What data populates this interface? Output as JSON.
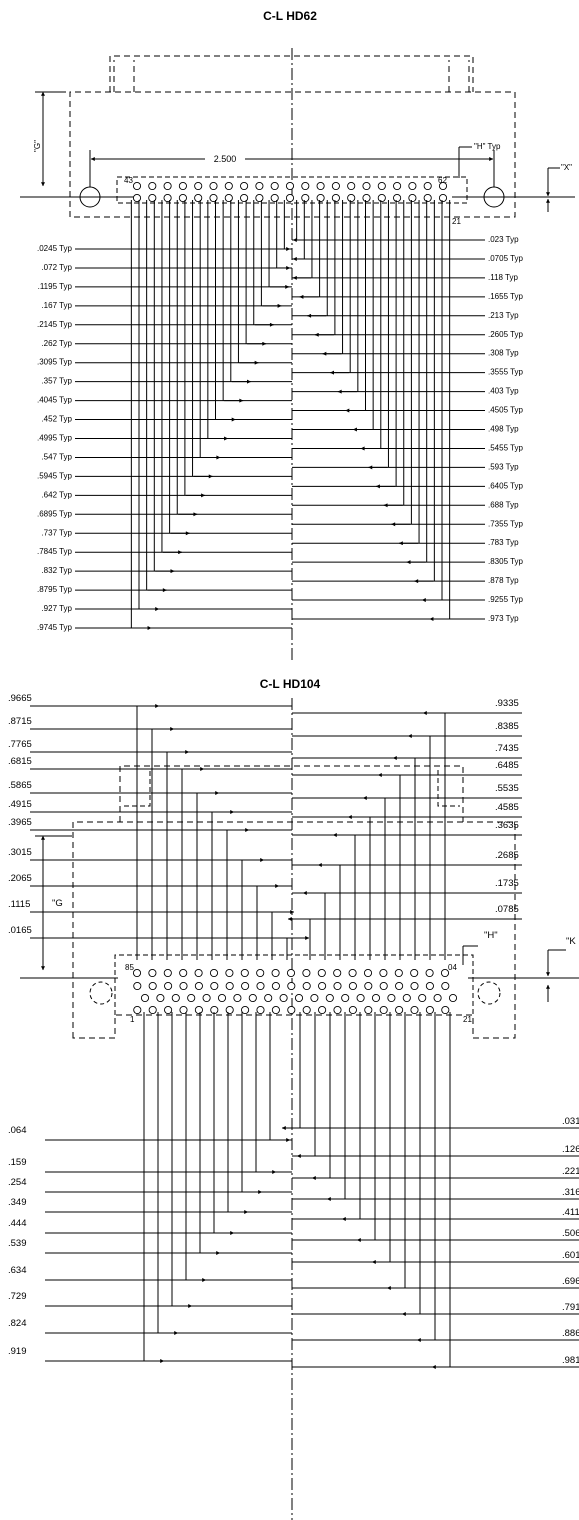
{
  "hd62": {
    "title": "C-L HD62",
    "span_label": "2.500",
    "g_label": "\"G\"",
    "h_label": "\"H\" Typ",
    "x_label": "\"X\"",
    "pin_first_top": "43",
    "pin_last_top": "62",
    "pin_last_bottom": "21",
    "left_dims": [
      ".0245 Typ",
      ".072 Typ",
      ".1195 Typ",
      ".167 Typ",
      ".2145 Typ",
      ".262 Typ",
      ".3095 Typ",
      ".357 Typ",
      ".4045 Typ",
      ".452 Typ",
      ".4995 Typ",
      ".547 Typ",
      ".5945 Typ",
      ".642 Typ",
      ".6895 Typ",
      ".737 Typ",
      ".7845 Typ",
      ".832 Typ",
      ".8795 Typ",
      ".927 Typ",
      ".9745 Typ"
    ],
    "right_dims": [
      ".023 Typ",
      ".0705 Typ",
      ".118 Typ",
      ".1655 Typ",
      ".213 Typ",
      ".2605 Typ",
      ".308 Typ",
      ".3555 Typ",
      ".403 Typ",
      ".4505 Typ",
      ".498 Typ",
      ".5455 Typ",
      ".593 Typ",
      ".6405 Typ",
      ".688 Typ",
      ".7355 Typ",
      ".783 Typ",
      ".8305 Typ",
      ".878 Typ",
      ".9255 Typ",
      ".973 Typ"
    ]
  },
  "hd104": {
    "title": "C-L HD104",
    "g_label": "\"G",
    "h_label": "\"H\"",
    "k_label": "\"K",
    "pin_first_top": "85",
    "pin_last_top": "04",
    "pin_first_bottom": "1",
    "pin_last_bottom": "21",
    "upper_left": [
      ".9665",
      ".8715",
      ".7765",
      ".6815",
      ".5865",
      ".4915",
      ".3965",
      ".3015",
      ".2065",
      ".1115",
      ".0165"
    ],
    "upper_right": [
      ".9335",
      ".8385",
      ".7435",
      ".6485",
      ".5535",
      ".4585",
      ".3635",
      ".2685",
      ".1735",
      ".0785"
    ],
    "lower_left": [
      ".064",
      ".159",
      ".254",
      ".349",
      ".444",
      ".539",
      ".634",
      ".729",
      ".824",
      ".919"
    ],
    "lower_right": [
      ".031",
      ".126",
      ".221",
      ".316",
      ".411",
      ".506",
      ".601",
      ".696",
      ".791",
      ".886",
      ".981"
    ]
  }
}
